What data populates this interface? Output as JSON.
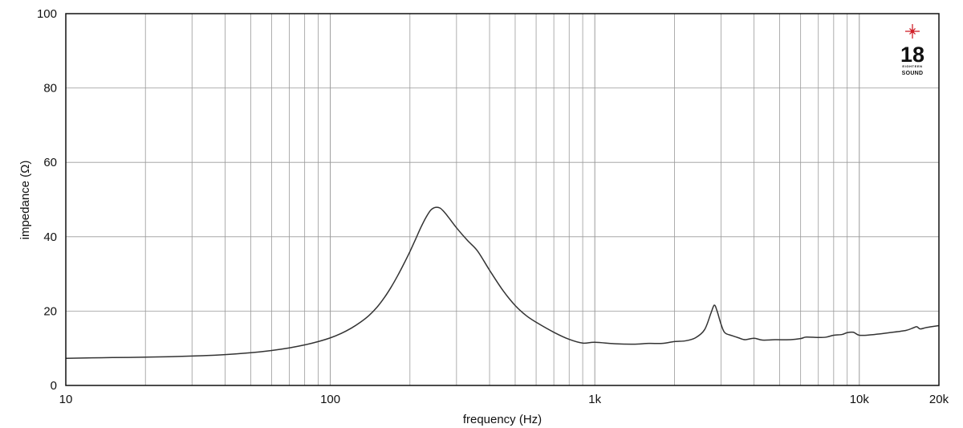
{
  "chart_data": {
    "type": "line",
    "xlabel": "frequency (Hz)",
    "ylabel": "impedance (Ω)",
    "x_scale": "log",
    "xlim": [
      10,
      20000
    ],
    "ylim": [
      0,
      100
    ],
    "grid": true,
    "x_ticks": [
      {
        "value": 10,
        "label": "10"
      },
      {
        "value": 100,
        "label": "100"
      },
      {
        "value": 1000,
        "label": "1k"
      },
      {
        "value": 10000,
        "label": "10k"
      },
      {
        "value": 20000,
        "label": "20k"
      }
    ],
    "y_ticks": [
      {
        "value": 0,
        "label": "0"
      },
      {
        "value": 20,
        "label": "20"
      },
      {
        "value": 40,
        "label": "40"
      },
      {
        "value": 60,
        "label": "60"
      },
      {
        "value": 80,
        "label": "80"
      },
      {
        "value": 100,
        "label": "100"
      }
    ],
    "series": [
      {
        "color": "#333333",
        "points": [
          [
            10,
            7.3
          ],
          [
            15,
            7.5
          ],
          [
            20,
            7.6
          ],
          [
            30,
            7.9
          ],
          [
            40,
            8.3
          ],
          [
            50,
            8.8
          ],
          [
            60,
            9.4
          ],
          [
            70,
            10.1
          ],
          [
            80,
            10.9
          ],
          [
            90,
            11.8
          ],
          [
            100,
            12.8
          ],
          [
            110,
            14.0
          ],
          [
            120,
            15.4
          ],
          [
            130,
            17.0
          ],
          [
            140,
            18.8
          ],
          [
            150,
            21.0
          ],
          [
            160,
            23.6
          ],
          [
            170,
            26.5
          ],
          [
            180,
            29.6
          ],
          [
            190,
            32.8
          ],
          [
            200,
            36.0
          ],
          [
            210,
            39.3
          ],
          [
            220,
            42.5
          ],
          [
            230,
            45.2
          ],
          [
            240,
            47.2
          ],
          [
            250,
            47.9
          ],
          [
            260,
            47.7
          ],
          [
            270,
            46.6
          ],
          [
            280,
            45.2
          ],
          [
            300,
            42.4
          ],
          [
            330,
            39.0
          ],
          [
            360,
            36.2
          ],
          [
            400,
            31.0
          ],
          [
            450,
            25.5
          ],
          [
            500,
            21.5
          ],
          [
            550,
            18.8
          ],
          [
            600,
            17.0
          ],
          [
            700,
            14.3
          ],
          [
            800,
            12.4
          ],
          [
            900,
            11.4
          ],
          [
            1000,
            11.6
          ],
          [
            1200,
            11.2
          ],
          [
            1400,
            11.1
          ],
          [
            1600,
            11.3
          ],
          [
            1800,
            11.3
          ],
          [
            2000,
            11.8
          ],
          [
            2200,
            12.0
          ],
          [
            2400,
            12.8
          ],
          [
            2600,
            15.0
          ],
          [
            2750,
            19.5
          ],
          [
            2830,
            21.6
          ],
          [
            2900,
            20.0
          ],
          [
            3000,
            16.5
          ],
          [
            3100,
            14.2
          ],
          [
            3300,
            13.4
          ],
          [
            3500,
            12.8
          ],
          [
            3700,
            12.3
          ],
          [
            4000,
            12.7
          ],
          [
            4300,
            12.2
          ],
          [
            4800,
            12.3
          ],
          [
            5500,
            12.3
          ],
          [
            6000,
            12.6
          ],
          [
            6300,
            13.0
          ],
          [
            7000,
            12.9
          ],
          [
            7500,
            13.0
          ],
          [
            8000,
            13.5
          ],
          [
            8600,
            13.7
          ],
          [
            9000,
            14.2
          ],
          [
            9500,
            14.3
          ],
          [
            10000,
            13.5
          ],
          [
            11000,
            13.6
          ],
          [
            13000,
            14.2
          ],
          [
            15000,
            14.8
          ],
          [
            16000,
            15.5
          ],
          [
            16500,
            15.8
          ],
          [
            17000,
            15.2
          ],
          [
            18000,
            15.6
          ],
          [
            20000,
            16.1
          ]
        ]
      }
    ]
  },
  "logo": {
    "number": "18",
    "small_text": "EIGHTEEN",
    "word": "SOUND",
    "star_color": "#d0202a"
  }
}
